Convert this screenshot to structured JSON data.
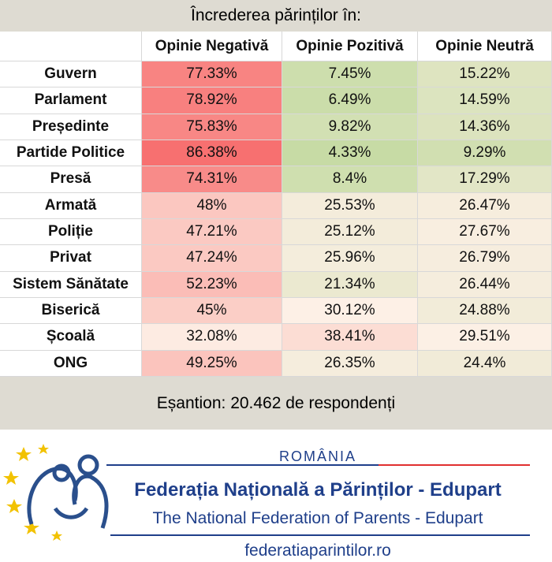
{
  "title": "Încrederea părinților în:",
  "table": {
    "headers": [
      "Opinie Negativă",
      "Opinie Pozitivă",
      "Opinie Neutră"
    ],
    "rows": [
      [
        "Guvern",
        "77.33%",
        "7.45%",
        "15.22%"
      ],
      [
        "Parlament",
        "78.92%",
        "6.49%",
        "14.59%"
      ],
      [
        "Președinte",
        "75.83%",
        "9.82%",
        "14.36%"
      ],
      [
        "Partide Politice",
        "86.38%",
        "4.33%",
        "9.29%"
      ],
      [
        "Presă",
        "74.31%",
        "8.4%",
        "17.29%"
      ],
      [
        "Armată",
        "48%",
        "25.53%",
        "26.47%"
      ],
      [
        "Poliție",
        "47.21%",
        "25.12%",
        "27.67%"
      ],
      [
        "Privat",
        "47.24%",
        "25.96%",
        "26.79%"
      ],
      [
        "Sistem Sănătate",
        "52.23%",
        "21.34%",
        "26.44%"
      ],
      [
        "Biserică",
        "45%",
        "30.12%",
        "24.88%"
      ],
      [
        "Școală",
        "32.08%",
        "38.41%",
        "29.51%"
      ],
      [
        "ONG",
        "49.25%",
        "26.35%",
        "24.4%"
      ]
    ]
  },
  "sample": "Eșantion: 20.462 de respondenți",
  "logo": {
    "country": "ROMÂNIA",
    "name": "Federația Națională a Părinților - Edupart",
    "name_en": "The National Federation of Parents - Edupart",
    "url": "federatiaparintilor.ro"
  }
}
